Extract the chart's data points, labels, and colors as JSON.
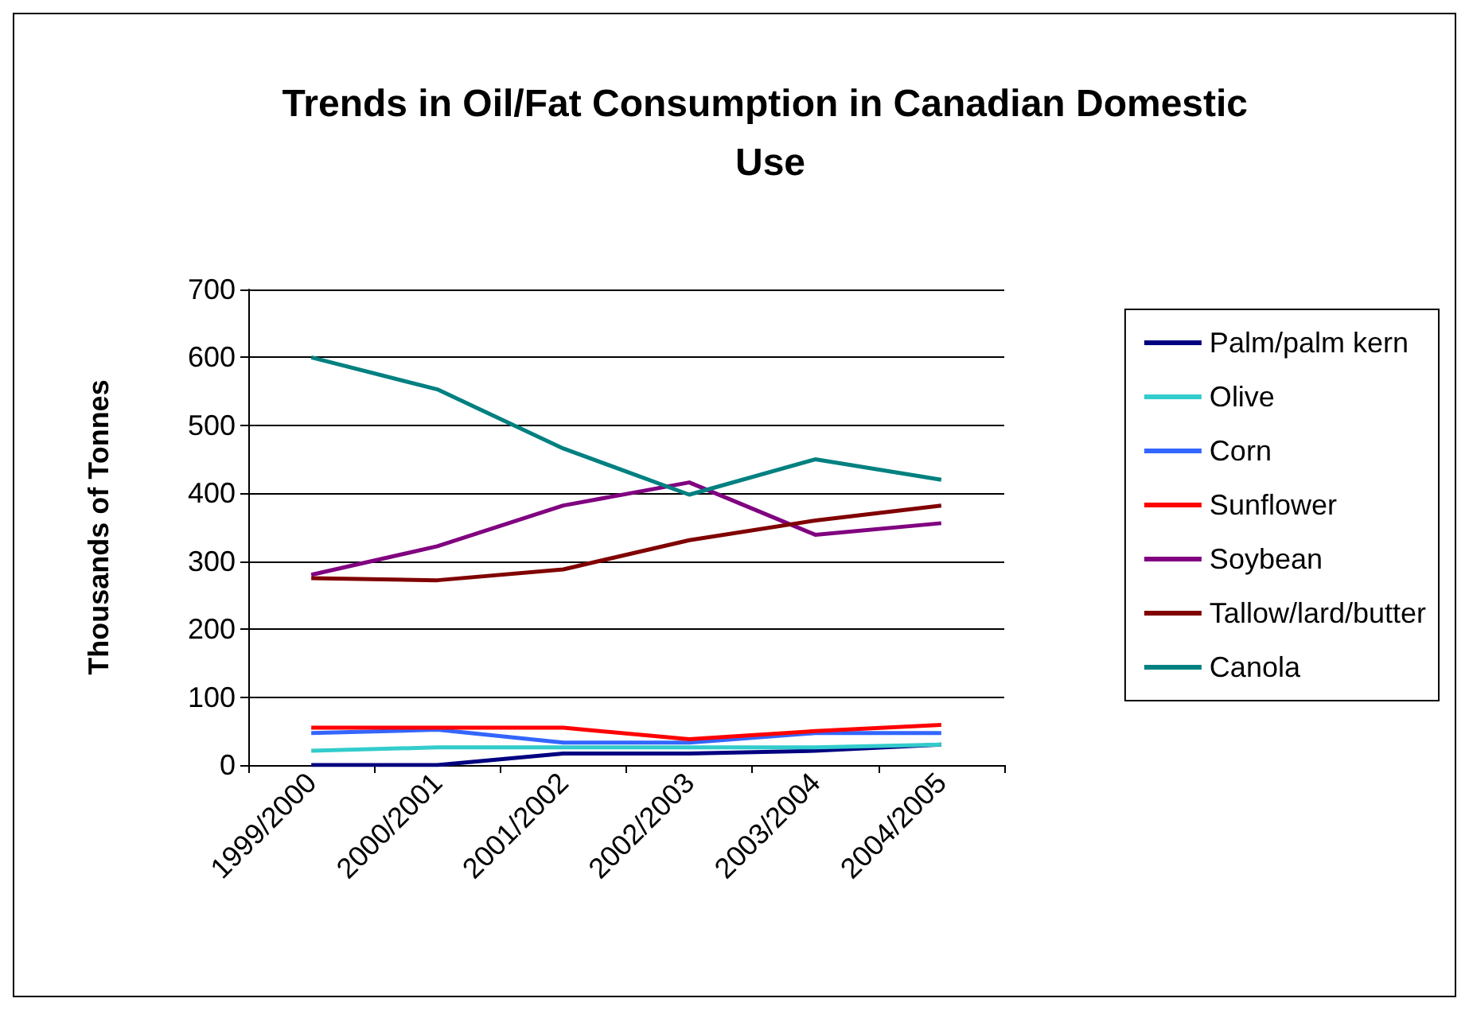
{
  "chart_data": {
    "type": "line",
    "title": "Trends in Oil/Fat Consumption in Canadian Domestic Use",
    "ylabel": "Thousands of Tonnes",
    "categories": [
      "1999/2000",
      "2000/2001",
      "2001/2002",
      "2002/2003",
      "2003/2004",
      "2004/2005"
    ],
    "series": [
      {
        "name": "Palm/palm kern",
        "color": "#000080",
        "values": [
          0,
          0,
          17,
          17,
          21,
          30
        ]
      },
      {
        "name": "Olive",
        "color": "#33cccc",
        "values": [
          21,
          26,
          26,
          26,
          26,
          30
        ]
      },
      {
        "name": "Corn",
        "color": "#3366ff",
        "values": [
          47,
          52,
          33,
          33,
          47,
          47
        ]
      },
      {
        "name": "Sunflower",
        "color": "#ff0000",
        "values": [
          55,
          55,
          55,
          38,
          50,
          59
        ]
      },
      {
        "name": "Soybean",
        "color": "#800080",
        "values": [
          280,
          322,
          382,
          416,
          339,
          356
        ]
      },
      {
        "name": "Tallow/lard/butter",
        "color": "#800000",
        "values": [
          275,
          272,
          288,
          331,
          360,
          382
        ]
      },
      {
        "name": "Canola",
        "color": "#008080",
        "values": [
          600,
          553,
          466,
          398,
          450,
          420
        ]
      }
    ],
    "ylim": [
      0,
      700
    ],
    "yticks": [
      0,
      100,
      200,
      300,
      400,
      500,
      600,
      700
    ],
    "grid": "y",
    "legend": "right",
    "marker": "none"
  }
}
